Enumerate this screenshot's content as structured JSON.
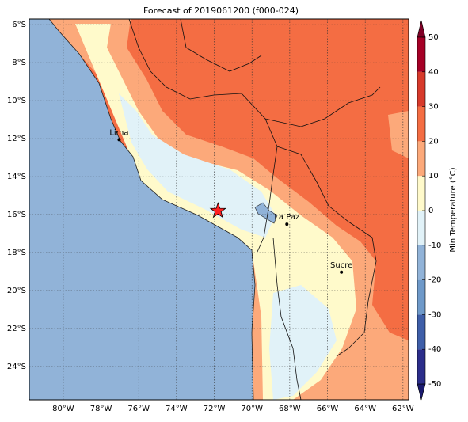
{
  "title": "Forecast of 2019061200 (f000-024)",
  "map": {
    "lon_range": [
      -81.8,
      -61.7
    ],
    "lat_range": [
      -5.7,
      -25.75
    ],
    "lat_ticks": [
      {
        "value": -6,
        "label": "6°S"
      },
      {
        "value": -8,
        "label": "8°S"
      },
      {
        "value": -10,
        "label": "10°S"
      },
      {
        "value": -12,
        "label": "12°S"
      },
      {
        "value": -14,
        "label": "14°S"
      },
      {
        "value": -16,
        "label": "16°S"
      },
      {
        "value": -18,
        "label": "18°S"
      },
      {
        "value": -20,
        "label": "20°S"
      },
      {
        "value": -22,
        "label": "22°S"
      },
      {
        "value": -24,
        "label": "24°S"
      }
    ],
    "lon_ticks": [
      {
        "value": -80,
        "label": "80°W"
      },
      {
        "value": -78,
        "label": "78°W"
      },
      {
        "value": -76,
        "label": "76°W"
      },
      {
        "value": -74,
        "label": "74°W"
      },
      {
        "value": -72,
        "label": "72°W"
      },
      {
        "value": -70,
        "label": "70°W"
      },
      {
        "value": -68,
        "label": "68°W"
      },
      {
        "value": -66,
        "label": "66°W"
      },
      {
        "value": -64,
        "label": "64°W"
      },
      {
        "value": -62,
        "label": "62°W"
      }
    ],
    "cities": [
      {
        "name": "Lima",
        "lon": -77.04,
        "lat": -12.05
      },
      {
        "name": "La Paz",
        "lon": -68.15,
        "lat": -16.5
      },
      {
        "name": "Sucre",
        "lon": -65.26,
        "lat": -19.03
      }
    ],
    "star": {
      "lon": -71.8,
      "lat": -15.8,
      "color": "#ff2020"
    }
  },
  "colorbar": {
    "label": "Min Temperature (°C)",
    "lim": [
      -50,
      50
    ],
    "ticks": [
      -50,
      -40,
      -30,
      -20,
      -10,
      0,
      10,
      20,
      30,
      40,
      50
    ],
    "colors": [
      "#2b2d8a",
      "#3e5ea8",
      "#6e99c9",
      "#91b3d8",
      "#e1f2f8",
      "#fffacb",
      "#fca97a",
      "#f46d43",
      "#d73a2b",
      "#a50026"
    ]
  }
}
